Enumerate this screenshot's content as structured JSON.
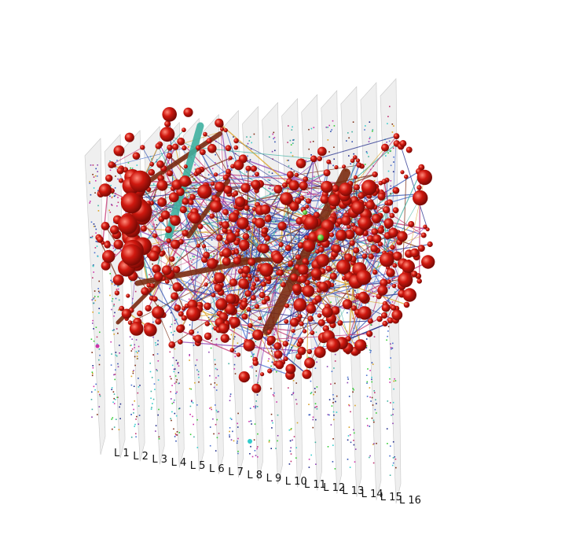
{
  "layers": [
    "L 1",
    "L 2",
    "L 3",
    "L 4",
    "L 5",
    "L 6",
    "L 7",
    "L 8",
    "L 9",
    "L 10",
    "L 11",
    "L 12",
    "L 13",
    "L 14",
    "L 15",
    "L 16"
  ],
  "colors": {
    "plane": "#d8d8d8",
    "node": "#cc1a12",
    "node_highlight": "#ff7a6a",
    "edge_palette": [
      "#7a2a10",
      "#2f4fb0",
      "#1f2a8a",
      "#3fb0a0",
      "#c0306f",
      "#8a3fb0",
      "#d9a020",
      "#4a70d0"
    ],
    "accent_green": "#33cc33",
    "accent_cyan": "#33cccc",
    "accent_magenta": "#cc33aa"
  }
}
